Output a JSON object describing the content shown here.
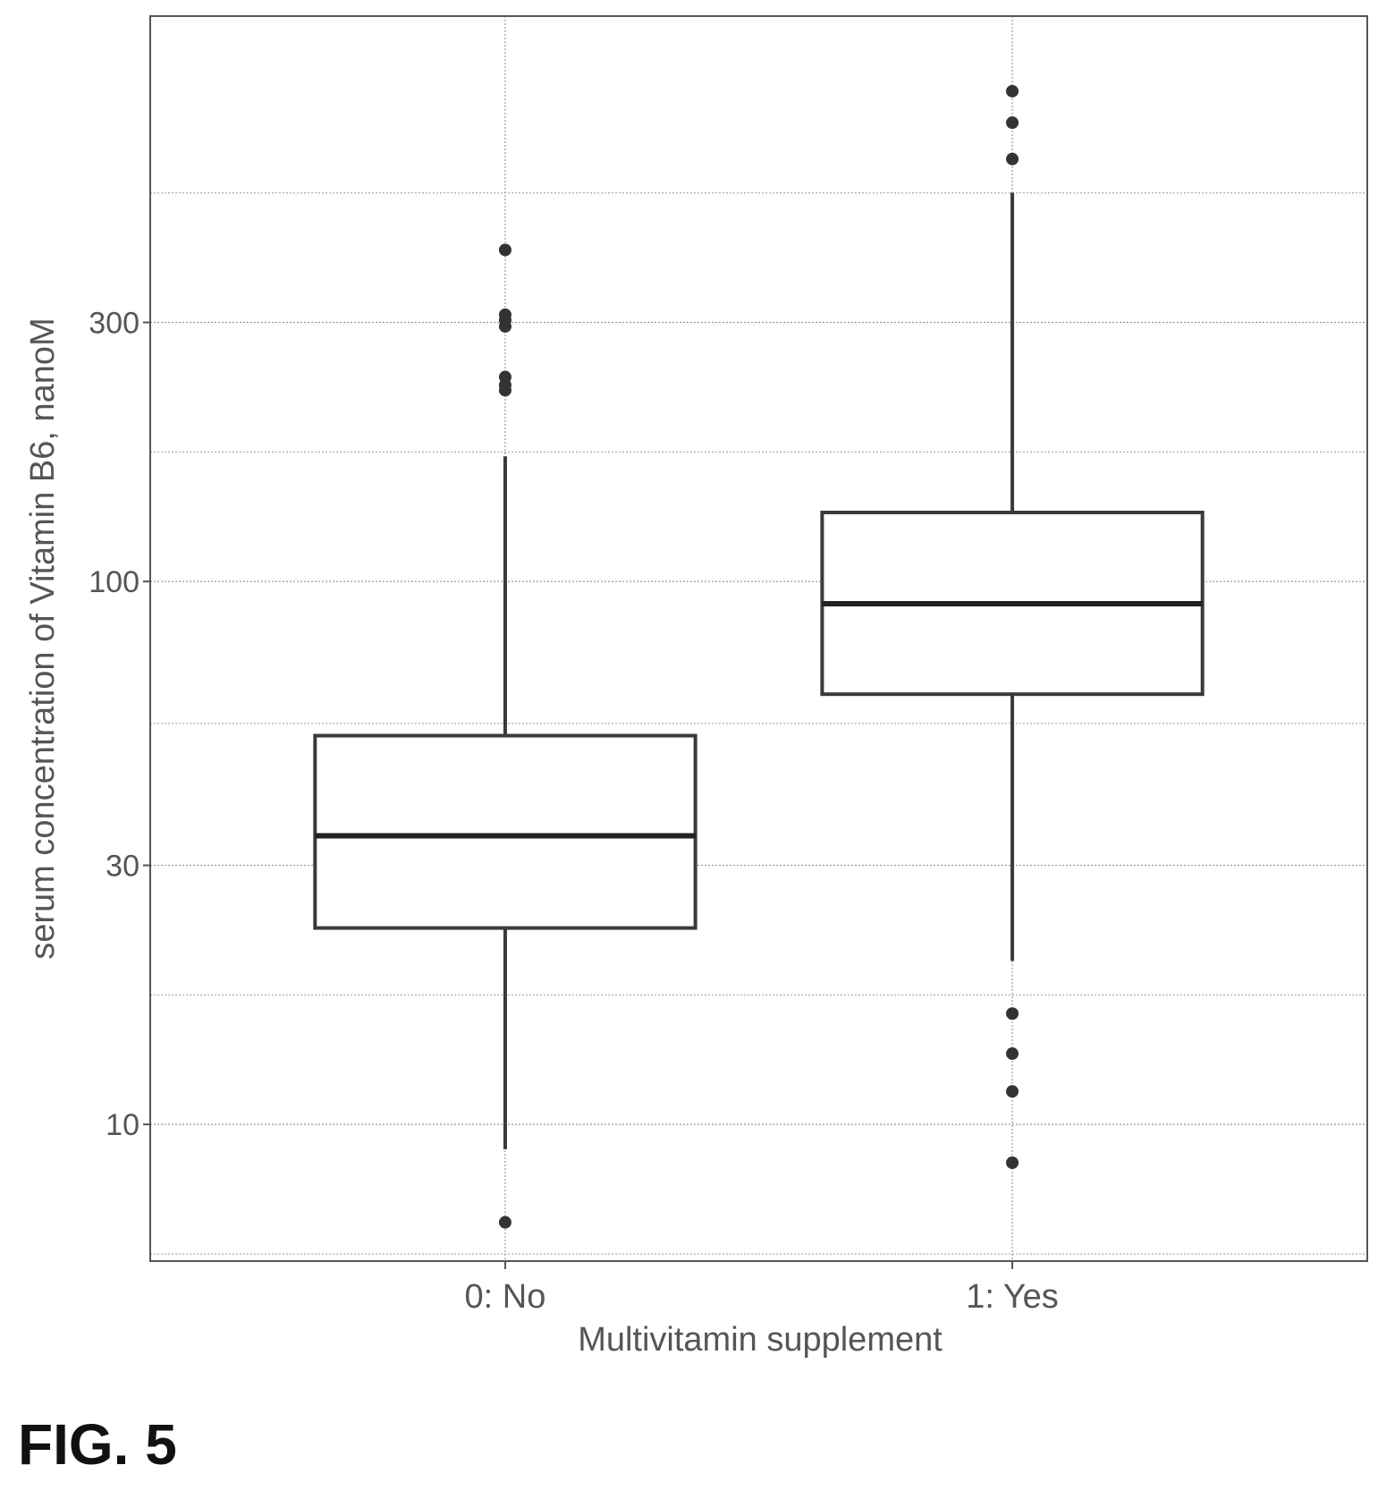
{
  "figure_label": "FIG. 5",
  "chart_data": {
    "type": "box",
    "xlabel": "Multivitamin supplement",
    "ylabel": "serum concentration of Vitamin B6, nanoM",
    "yscale": "log",
    "ylim": [
      5.6,
      1100
    ],
    "yticks": [
      10,
      30,
      100,
      300
    ],
    "ytick_labels": [
      "10",
      "30",
      "100",
      "300"
    ],
    "categories": [
      "0: No",
      "1: Yes"
    ],
    "grid": true,
    "boxes": [
      {
        "category": "0: No",
        "whisker_low": 9,
        "q1": 23,
        "median": 34,
        "q3": 52,
        "whisker_high": 170,
        "outliers": [
          6.6,
          225,
          230,
          238,
          295,
          303,
          310,
          408
        ]
      },
      {
        "category": "1: Yes",
        "whisker_low": 20,
        "q1": 62,
        "median": 91,
        "q3": 134,
        "whisker_high": 520,
        "outliers": [
          8.5,
          11.5,
          13.5,
          16,
          600,
          700,
          800
        ]
      }
    ],
    "colors": {
      "box_edge": "#3a3a3a",
      "median": "#222222",
      "point": "#333333",
      "grid": "#9a9a9a",
      "frame": "#555555",
      "text": "#555555"
    }
  }
}
